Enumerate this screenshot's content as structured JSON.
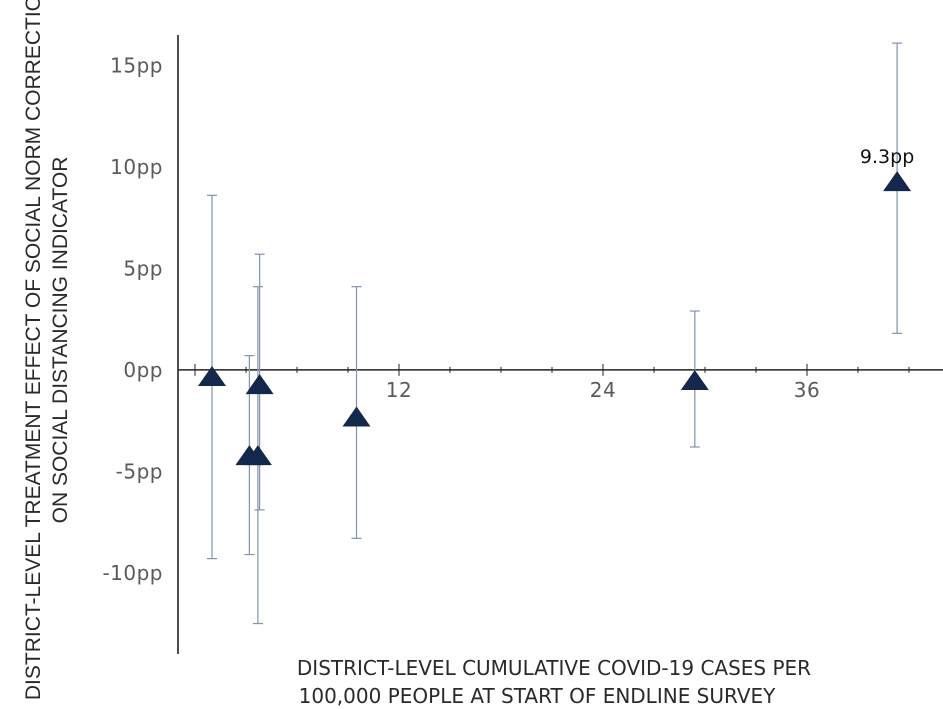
{
  "chart_data": {
    "type": "scatter",
    "title": "",
    "xlabel_lines": [
      "DISTRICT-LEVEL CUMULATIVE COVID-19 CASES PER",
      "100,000 PEOPLE AT START OF ENDLINE SURVEY"
    ],
    "ylabel_lines": [
      "DISTRICT-LEVEL TREATMENT EFFECT OF SOCIAL NORM CORRECTION",
      "ON SOCIAL DISTANCING INDICATOR"
    ],
    "xlim": [
      -1,
      44
    ],
    "ylim": [
      -14,
      16.5
    ],
    "x_ticks": [
      {
        "value": 12,
        "label": "12"
      },
      {
        "value": 24,
        "label": "24"
      },
      {
        "value": 36,
        "label": "36"
      }
    ],
    "y_ticks": [
      {
        "value": 15,
        "label": "15pp"
      },
      {
        "value": 10,
        "label": "10pp"
      },
      {
        "value": 5,
        "label": "5pp"
      },
      {
        "value": 0,
        "label": "0pp"
      },
      {
        "value": -5,
        "label": "-5pp"
      },
      {
        "value": -10,
        "label": "-10pp"
      }
    ],
    "marker": "triangle",
    "marker_color": "#14284b",
    "errorbar_color": "#8193b0",
    "axis_color": "#222222",
    "points": [
      {
        "x": 1.0,
        "y": -0.3,
        "ci_low": -9.3,
        "ci_high": 8.6
      },
      {
        "x": 3.2,
        "y": -4.2,
        "ci_low": -9.1,
        "ci_high": 0.7
      },
      {
        "x": 3.7,
        "y": -4.2,
        "ci_low": -12.5,
        "ci_high": 4.1
      },
      {
        "x": 3.8,
        "y": -0.7,
        "ci_low": -6.9,
        "ci_high": 5.7
      },
      {
        "x": 9.5,
        "y": -2.3,
        "ci_low": -8.3,
        "ci_high": 4.1
      },
      {
        "x": 29.4,
        "y": -0.5,
        "ci_low": -3.8,
        "ci_high": 2.9
      },
      {
        "x": 41.3,
        "y": 9.3,
        "ci_low": 1.8,
        "ci_high": 16.1,
        "label": "9.3pp"
      }
    ]
  }
}
